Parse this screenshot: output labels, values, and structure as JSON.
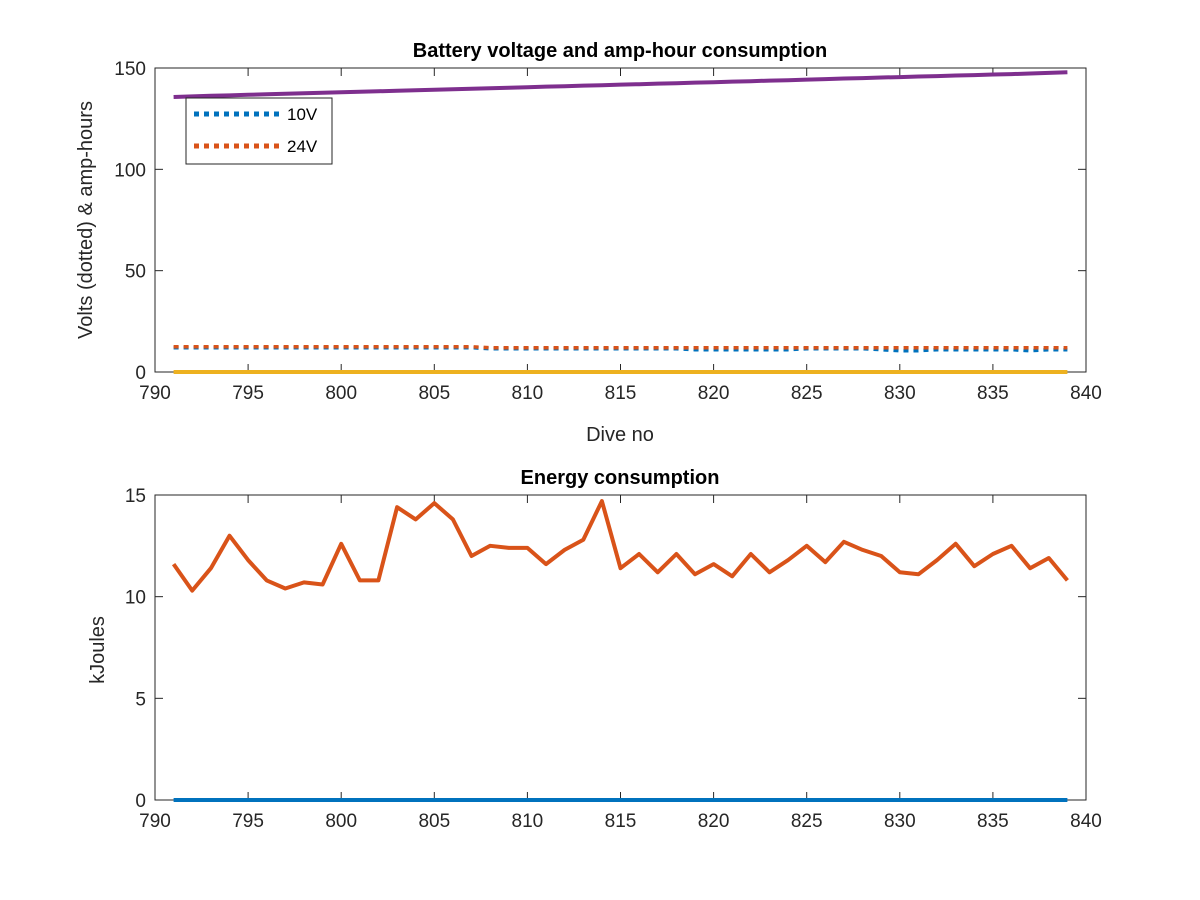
{
  "chart_data": [
    {
      "type": "line",
      "title": "Battery voltage and amp-hour consumption",
      "xlabel": "Dive no",
      "ylabel": "Volts (dotted) & amp-hours",
      "xlim": [
        790,
        840
      ],
      "ylim": [
        0,
        150
      ],
      "xticks": [
        790,
        795,
        800,
        805,
        810,
        815,
        820,
        825,
        830,
        835,
        840
      ],
      "yticks": [
        0,
        50,
        100,
        150
      ],
      "grid": false,
      "legend_placement": "top-left",
      "x": [
        791,
        792,
        793,
        794,
        795,
        796,
        797,
        798,
        799,
        800,
        801,
        802,
        803,
        804,
        805,
        806,
        807,
        808,
        809,
        810,
        811,
        812,
        813,
        814,
        815,
        816,
        817,
        818,
        819,
        820,
        821,
        822,
        823,
        824,
        825,
        826,
        827,
        828,
        829,
        830,
        831,
        832,
        833,
        834,
        835,
        836,
        837,
        838,
        839
      ],
      "series": [
        {
          "name": "10V",
          "style": "dotted",
          "color": "#0072BD",
          "values": [
            12,
            12,
            12,
            12,
            12,
            12,
            12,
            12,
            12,
            12,
            12,
            12,
            12,
            12,
            12,
            12,
            12,
            11.5,
            11.5,
            11.5,
            11.5,
            11.5,
            11.5,
            11.5,
            11.5,
            11.5,
            11.5,
            11.5,
            11,
            11,
            11,
            11,
            11,
            11,
            11.5,
            11.5,
            11.5,
            11.5,
            11,
            10.5,
            10.5,
            11,
            11,
            11,
            11,
            11,
            10.5,
            11,
            11
          ]
        },
        {
          "name": "24V",
          "style": "dotted",
          "color": "#D95319",
          "values": [
            12.5,
            12.5,
            12.5,
            12.5,
            12.5,
            12.5,
            12.5,
            12.5,
            12.5,
            12.5,
            12.5,
            12.5,
            12.5,
            12.5,
            12.5,
            12.5,
            12.5,
            12,
            12,
            12,
            12,
            12,
            12,
            12,
            12,
            12,
            12,
            12,
            12,
            12,
            12,
            12,
            12,
            12,
            12,
            12,
            12,
            12,
            12,
            12,
            12,
            12,
            12,
            12,
            12,
            12,
            12,
            12,
            12
          ]
        },
        {
          "style": "solid",
          "color": "#7E2F8E",
          "values": [
            135.7,
            136,
            136.3,
            136.5,
            136.8,
            137,
            137.3,
            137.5,
            137.8,
            138,
            138.3,
            138.5,
            138.8,
            139,
            139.3,
            139.5,
            139.8,
            140,
            140.3,
            140.5,
            140.8,
            141,
            141.3,
            141.5,
            141.8,
            142,
            142.3,
            142.5,
            142.8,
            143,
            143.3,
            143.5,
            143.8,
            144,
            144.3,
            144.5,
            144.8,
            145,
            145.3,
            145.5,
            145.8,
            146,
            146.3,
            146.5,
            146.8,
            147,
            147.3,
            147.6,
            147.9
          ]
        },
        {
          "style": "solid",
          "color": "#EDB120",
          "values": [
            0,
            0,
            0,
            0,
            0,
            0,
            0,
            0,
            0,
            0,
            0,
            0,
            0,
            0,
            0,
            0,
            0,
            0,
            0,
            0,
            0,
            0,
            0,
            0,
            0,
            0,
            0,
            0,
            0,
            0,
            0,
            0,
            0,
            0,
            0,
            0,
            0,
            0,
            0,
            0,
            0,
            0,
            0,
            0,
            0,
            0,
            0,
            0,
            0
          ]
        }
      ]
    },
    {
      "type": "line",
      "title": "Energy consumption",
      "xlabel": "",
      "ylabel": "kJoules",
      "xlim": [
        790,
        840
      ],
      "ylim": [
        0,
        15
      ],
      "xticks": [
        790,
        795,
        800,
        805,
        810,
        815,
        820,
        825,
        830,
        835,
        840
      ],
      "yticks": [
        0,
        5,
        10,
        15
      ],
      "grid": false,
      "x": [
        791,
        792,
        793,
        794,
        795,
        796,
        797,
        798,
        799,
        800,
        801,
        802,
        803,
        804,
        805,
        806,
        807,
        808,
        809,
        810,
        811,
        812,
        813,
        814,
        815,
        816,
        817,
        818,
        819,
        820,
        821,
        822,
        823,
        824,
        825,
        826,
        827,
        828,
        829,
        830,
        831,
        832,
        833,
        834,
        835,
        836,
        837,
        838,
        839
      ],
      "series": [
        {
          "style": "solid",
          "color": "#0072BD",
          "values": [
            0,
            0,
            0,
            0,
            0,
            0,
            0,
            0,
            0,
            0,
            0,
            0,
            0,
            0,
            0,
            0,
            0,
            0,
            0,
            0,
            0,
            0,
            0,
            0,
            0,
            0,
            0,
            0,
            0,
            0,
            0,
            0,
            0,
            0,
            0,
            0,
            0,
            0,
            0,
            0,
            0,
            0,
            0,
            0,
            0,
            0,
            0,
            0,
            0
          ]
        },
        {
          "style": "solid",
          "color": "#D95319",
          "values": [
            11.6,
            10.3,
            11.4,
            13.0,
            11.8,
            10.8,
            10.4,
            10.7,
            10.6,
            12.6,
            10.8,
            10.8,
            14.4,
            13.8,
            14.6,
            13.8,
            12.0,
            12.5,
            12.4,
            12.4,
            11.6,
            12.3,
            12.8,
            14.7,
            11.4,
            12.1,
            11.2,
            12.1,
            11.1,
            11.6,
            11.0,
            12.1,
            11.2,
            11.8,
            12.5,
            11.7,
            12.7,
            12.3,
            12.0,
            11.2,
            11.1,
            11.8,
            12.6,
            11.5,
            12.1,
            12.5,
            11.4,
            11.9,
            10.8
          ]
        }
      ]
    }
  ]
}
